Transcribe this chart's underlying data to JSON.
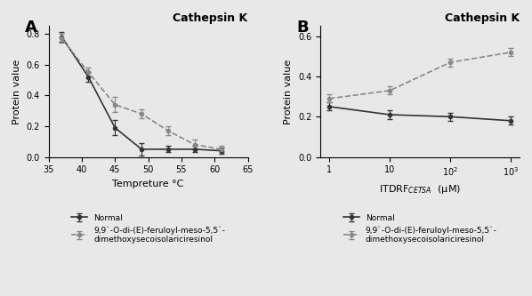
{
  "panel_A": {
    "title": "Cathepsin K",
    "xlabel": "Tempreture °C",
    "ylabel": "Protein value",
    "xlim": [
      35,
      65
    ],
    "ylim": [
      0.0,
      0.85
    ],
    "yticks": [
      0.0,
      0.2,
      0.4,
      0.6,
      0.8
    ],
    "xticks": [
      35,
      40,
      45,
      50,
      55,
      60,
      65
    ],
    "normal": {
      "x": [
        37,
        41,
        45,
        49,
        53,
        57,
        61
      ],
      "y": [
        0.78,
        0.52,
        0.19,
        0.05,
        0.05,
        0.05,
        0.04
      ],
      "yerr": [
        0.03,
        0.03,
        0.05,
        0.04,
        0.02,
        0.02,
        0.02
      ],
      "color": "#333333",
      "linestyle": "-"
    },
    "compound": {
      "x": [
        37,
        41,
        45,
        49,
        53,
        57,
        61
      ],
      "y": [
        0.77,
        0.55,
        0.34,
        0.28,
        0.17,
        0.08,
        0.05
      ],
      "yerr": [
        0.03,
        0.03,
        0.05,
        0.03,
        0.03,
        0.03,
        0.02
      ],
      "color": "#888888",
      "linestyle": "--"
    },
    "legend_normal": "Normal",
    "legend_compound": "9,9`-O-di-(E)-feruloyl-meso-5,5`-\ndimethoxysecoisolariciresinol"
  },
  "panel_B": {
    "title": "Cathepsin K",
    "xlabel": "ITDRF$_{CETSA}$  (μM)",
    "ylabel": "Protein value",
    "ylim": [
      0.0,
      0.65
    ],
    "yticks": [
      0.0,
      0.2,
      0.4,
      0.6
    ],
    "xtick_positions": [
      1,
      2,
      3,
      4
    ],
    "xtick_labels": [
      "1",
      "10",
      "$10^2$",
      "$10^3$"
    ],
    "normal": {
      "x": [
        1,
        2,
        3,
        4
      ],
      "y": [
        0.25,
        0.21,
        0.2,
        0.18
      ],
      "yerr": [
        0.02,
        0.02,
        0.02,
        0.02
      ],
      "color": "#333333",
      "linestyle": "-"
    },
    "compound": {
      "x": [
        1,
        2,
        3,
        4
      ],
      "y": [
        0.29,
        0.33,
        0.47,
        0.52
      ],
      "yerr": [
        0.02,
        0.02,
        0.02,
        0.02
      ],
      "color": "#888888",
      "linestyle": "--"
    },
    "legend_normal": "Normal",
    "legend_compound": "9,9`-O-di-(E)-feruloyl-meso-5,5`-\ndimethoxysecoisolariciresinol"
  },
  "background_color": "#e8e8e8",
  "label_A": "A",
  "label_B": "B"
}
